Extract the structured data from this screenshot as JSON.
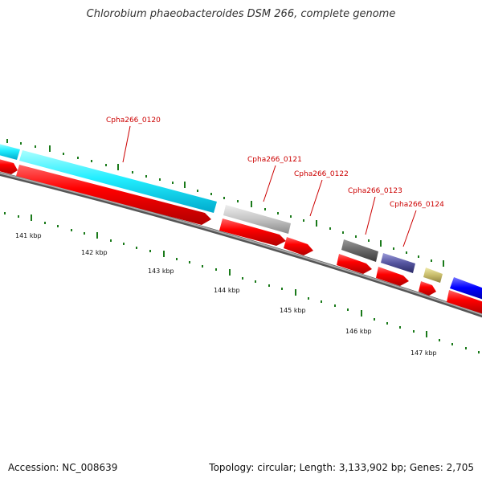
{
  "title": "Chlorobium phaeobacteroides DSM 266, complete genome",
  "footer": {
    "accession_label": "Accession:",
    "accession": "NC_008639",
    "topology_label": "Topology:",
    "topology": "circular",
    "length_label": "Length:",
    "length": "3,133,902 bp",
    "genes_label": "Genes:",
    "genes": "2,705"
  },
  "colors": {
    "backbone": "#888888",
    "backbone_dark": "#555555",
    "tick": "#1a7a1a",
    "label": "#cc0000",
    "cds_red": "#ff0000"
  },
  "scale_labels": [
    "141 kbp",
    "142 kbp",
    "143 kbp",
    "144 kbp",
    "145 kbp",
    "146 kbp",
    "147 kbp"
  ],
  "gene_labels": [
    {
      "text": "Cpha266_0120"
    },
    {
      "text": "Cpha266_0121"
    },
    {
      "text": "Cpha266_0122"
    },
    {
      "text": "Cpha266_0123"
    },
    {
      "text": "Cpha266_0124"
    }
  ]
}
